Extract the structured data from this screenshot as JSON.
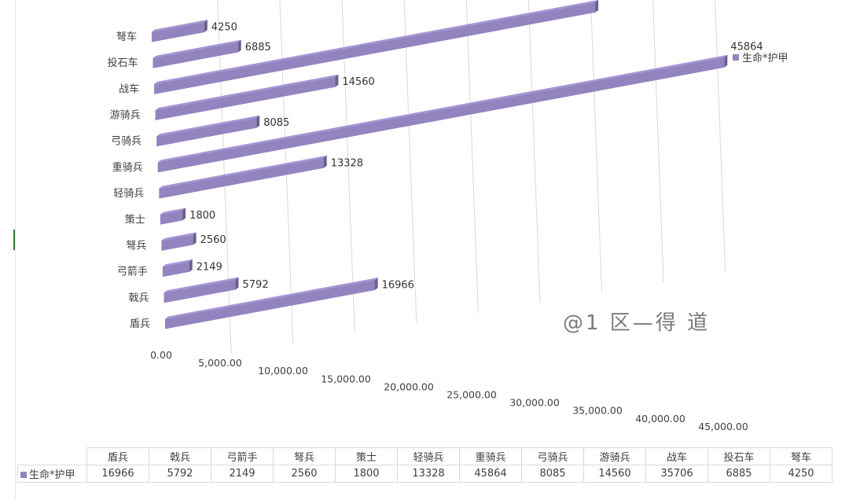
{
  "chart_data": {
    "type": "bar",
    "orientation": "horizontal",
    "style": "3d",
    "categories": [
      "盾兵",
      "戟兵",
      "弓箭手",
      "弩兵",
      "策士",
      "轻骑兵",
      "重骑兵",
      "弓骑兵",
      "游骑兵",
      "战车",
      "投石车",
      "弩车"
    ],
    "series": [
      {
        "name": "生命*护甲",
        "values": [
          16966,
          5792,
          2149,
          2560,
          1800,
          13328,
          45864,
          8085,
          14560,
          35706,
          6885,
          4250
        ],
        "color": "#9384c0"
      }
    ],
    "value_axis": {
      "min": 0,
      "max": 45000,
      "step": 5000,
      "tick_labels": [
        "0.00",
        "5,000.00",
        "10,000.00",
        "15,000.00",
        "20,000.00",
        "25,000.00",
        "30,000.00",
        "35,000.00",
        "40,000.00",
        "45,000.00"
      ]
    },
    "legend": {
      "position": "right",
      "label": "生命*护甲"
    },
    "data_table": true
  },
  "watermark": "@1 区—得 道",
  "table": {
    "series_label": "生命*护甲"
  }
}
